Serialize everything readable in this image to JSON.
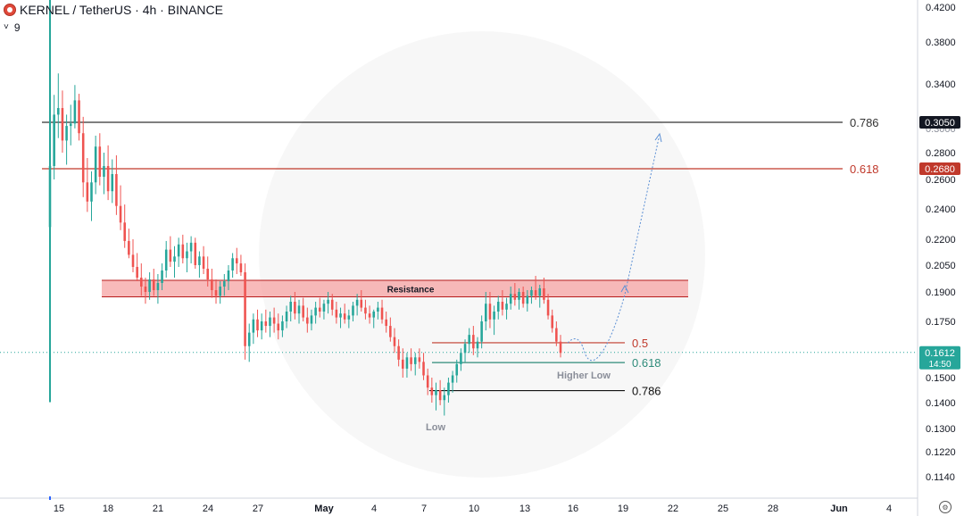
{
  "header": {
    "title": "KERNEL / TetherUS · 4h · BINANCE",
    "indicator_toggle": "˅",
    "indicator_count": "9"
  },
  "colors": {
    "up": "#26a69a",
    "down": "#ef5350",
    "fib_786": "#333333",
    "fib_618": "#c0392b",
    "resistance_fill": "#f5a3a3",
    "resistance_border": "#b71c1c",
    "green_fib": "#2e8b7a",
    "price_badge": "#26a69a"
  },
  "chart_data": {
    "type": "candlestick",
    "symbol": "KERNEL / TetherUS",
    "interval": "4h",
    "exchange": "BINANCE",
    "y_ticks": [
      "0.4200",
      "0.3800",
      "0.3400",
      "0.3050",
      "0.2800",
      "0.2600",
      "0.2400",
      "0.2200",
      "0.2050",
      "0.1900",
      "0.1750",
      "0.1612",
      "0.1500",
      "0.1400",
      "0.1300",
      "0.1220",
      "0.1140"
    ],
    "x_ticks": [
      "15",
      "18",
      "21",
      "24",
      "27",
      "May",
      "4",
      "7",
      "10",
      "13",
      "16",
      "19",
      "22",
      "25",
      "28",
      "Jun",
      "4"
    ],
    "last_price": "0.1612",
    "countdown": "14:50",
    "badges": [
      {
        "label": "0.3050",
        "value": 0.305,
        "color": "#131722"
      },
      {
        "label": "0.2680",
        "value": 0.268,
        "color": "#c0392b"
      }
    ],
    "fib_upper": [
      {
        "label": "0.786",
        "value": 0.305,
        "color": "#333333"
      },
      {
        "label": "0.618",
        "value": 0.268,
        "color": "#c0392b"
      }
    ],
    "fib_lower": [
      {
        "label": "0.5",
        "value": 0.1655,
        "color": "#c0392b"
      },
      {
        "label": "0.618",
        "value": 0.1567,
        "color": "#2e8b7a"
      },
      {
        "label": "0.786",
        "value": 0.1448,
        "color": "#111111"
      }
    ],
    "resistance": {
      "label": "Resistance",
      "top": 0.1965,
      "bottom": 0.1875
    },
    "annotations": {
      "low": "Low",
      "higher_low": "Higher Low"
    },
    "ohlc": [
      [
        0.228,
        0.29,
        0.14,
        0.27
      ],
      [
        0.27,
        0.33,
        0.26,
        0.312
      ],
      [
        0.312,
        0.35,
        0.292,
        0.318
      ],
      [
        0.318,
        0.334,
        0.28,
        0.29
      ],
      [
        0.29,
        0.312,
        0.271,
        0.302
      ],
      [
        0.302,
        0.321,
        0.286,
        0.304
      ],
      [
        0.304,
        0.339,
        0.3,
        0.325
      ],
      [
        0.325,
        0.331,
        0.29,
        0.296
      ],
      [
        0.296,
        0.31,
        0.248,
        0.258
      ],
      [
        0.258,
        0.276,
        0.238,
        0.245
      ],
      [
        0.245,
        0.266,
        0.232,
        0.258
      ],
      [
        0.258,
        0.294,
        0.25,
        0.285
      ],
      [
        0.285,
        0.296,
        0.256,
        0.262
      ],
      [
        0.262,
        0.28,
        0.25,
        0.27
      ],
      [
        0.27,
        0.286,
        0.246,
        0.252
      ],
      [
        0.252,
        0.275,
        0.244,
        0.264
      ],
      [
        0.264,
        0.278,
        0.236,
        0.242
      ],
      [
        0.242,
        0.256,
        0.226,
        0.231
      ],
      [
        0.231,
        0.243,
        0.215,
        0.219
      ],
      [
        0.219,
        0.227,
        0.209,
        0.211
      ],
      [
        0.211,
        0.22,
        0.201,
        0.204
      ],
      [
        0.204,
        0.212,
        0.196,
        0.198
      ],
      [
        0.198,
        0.206,
        0.188,
        0.193
      ],
      [
        0.193,
        0.198,
        0.184,
        0.19
      ],
      [
        0.19,
        0.201,
        0.186,
        0.197
      ],
      [
        0.197,
        0.203,
        0.188,
        0.191
      ],
      [
        0.191,
        0.2,
        0.184,
        0.195
      ],
      [
        0.195,
        0.206,
        0.191,
        0.202
      ],
      [
        0.202,
        0.219,
        0.198,
        0.214
      ],
      [
        0.214,
        0.222,
        0.204,
        0.207
      ],
      [
        0.207,
        0.216,
        0.198,
        0.21
      ],
      [
        0.21,
        0.221,
        0.204,
        0.217
      ],
      [
        0.217,
        0.223,
        0.206,
        0.209
      ],
      [
        0.209,
        0.218,
        0.201,
        0.213
      ],
      [
        0.213,
        0.222,
        0.206,
        0.218
      ],
      [
        0.218,
        0.221,
        0.203,
        0.205
      ],
      [
        0.205,
        0.213,
        0.198,
        0.21
      ],
      [
        0.21,
        0.216,
        0.2,
        0.203
      ],
      [
        0.203,
        0.21,
        0.193,
        0.197
      ],
      [
        0.197,
        0.203,
        0.187,
        0.191
      ],
      [
        0.191,
        0.197,
        0.184,
        0.188
      ],
      [
        0.188,
        0.196,
        0.184,
        0.193
      ],
      [
        0.193,
        0.2,
        0.188,
        0.196
      ],
      [
        0.196,
        0.205,
        0.191,
        0.202
      ],
      [
        0.202,
        0.212,
        0.198,
        0.209
      ],
      [
        0.209,
        0.215,
        0.2,
        0.206
      ],
      [
        0.206,
        0.211,
        0.199,
        0.201
      ],
      [
        0.201,
        0.206,
        0.158,
        0.164
      ],
      [
        0.164,
        0.174,
        0.157,
        0.17
      ],
      [
        0.17,
        0.179,
        0.165,
        0.176
      ],
      [
        0.176,
        0.181,
        0.168,
        0.171
      ],
      [
        0.171,
        0.179,
        0.167,
        0.175
      ],
      [
        0.175,
        0.181,
        0.17,
        0.173
      ],
      [
        0.173,
        0.18,
        0.168,
        0.177
      ],
      [
        0.177,
        0.182,
        0.17,
        0.174
      ],
      [
        0.174,
        0.179,
        0.167,
        0.171
      ],
      [
        0.171,
        0.178,
        0.168,
        0.175
      ],
      [
        0.175,
        0.183,
        0.172,
        0.18
      ],
      [
        0.18,
        0.188,
        0.175,
        0.185
      ],
      [
        0.185,
        0.19,
        0.176,
        0.179
      ],
      [
        0.179,
        0.186,
        0.174,
        0.183
      ],
      [
        0.183,
        0.187,
        0.175,
        0.177
      ],
      [
        0.177,
        0.182,
        0.17,
        0.174
      ],
      [
        0.174,
        0.181,
        0.171,
        0.178
      ],
      [
        0.178,
        0.185,
        0.174,
        0.182
      ],
      [
        0.182,
        0.187,
        0.177,
        0.18
      ],
      [
        0.18,
        0.186,
        0.176,
        0.184
      ],
      [
        0.184,
        0.19,
        0.179,
        0.186
      ],
      [
        0.186,
        0.189,
        0.178,
        0.181
      ],
      [
        0.181,
        0.185,
        0.174,
        0.177
      ],
      [
        0.177,
        0.182,
        0.172,
        0.179
      ],
      [
        0.179,
        0.184,
        0.174,
        0.176
      ],
      [
        0.176,
        0.181,
        0.172,
        0.178
      ],
      [
        0.178,
        0.185,
        0.175,
        0.183
      ],
      [
        0.183,
        0.189,
        0.178,
        0.186
      ],
      [
        0.186,
        0.191,
        0.18,
        0.182
      ],
      [
        0.182,
        0.186,
        0.176,
        0.179
      ],
      [
        0.179,
        0.183,
        0.174,
        0.177
      ],
      [
        0.177,
        0.181,
        0.172,
        0.18
      ],
      [
        0.18,
        0.185,
        0.176,
        0.182
      ],
      [
        0.182,
        0.186,
        0.174,
        0.176
      ],
      [
        0.176,
        0.18,
        0.17,
        0.173
      ],
      [
        0.173,
        0.177,
        0.166,
        0.168
      ],
      [
        0.168,
        0.172,
        0.161,
        0.164
      ],
      [
        0.164,
        0.167,
        0.155,
        0.158
      ],
      [
        0.158,
        0.163,
        0.15,
        0.154
      ],
      [
        0.154,
        0.161,
        0.15,
        0.159
      ],
      [
        0.159,
        0.163,
        0.153,
        0.156
      ],
      [
        0.156,
        0.161,
        0.151,
        0.159
      ],
      [
        0.159,
        0.163,
        0.154,
        0.157
      ],
      [
        0.157,
        0.161,
        0.149,
        0.151
      ],
      [
        0.151,
        0.154,
        0.143,
        0.146
      ],
      [
        0.146,
        0.15,
        0.14,
        0.143
      ],
      [
        0.143,
        0.148,
        0.137,
        0.145
      ],
      [
        0.145,
        0.149,
        0.139,
        0.141
      ],
      [
        0.141,
        0.146,
        0.135,
        0.143
      ],
      [
        0.143,
        0.15,
        0.14,
        0.148
      ],
      [
        0.148,
        0.153,
        0.144,
        0.151
      ],
      [
        0.151,
        0.158,
        0.148,
        0.156
      ],
      [
        0.156,
        0.163,
        0.153,
        0.161
      ],
      [
        0.161,
        0.167,
        0.157,
        0.165
      ],
      [
        0.165,
        0.172,
        0.161,
        0.169
      ],
      [
        0.169,
        0.173,
        0.16,
        0.163
      ],
      [
        0.163,
        0.168,
        0.159,
        0.166
      ],
      [
        0.166,
        0.178,
        0.163,
        0.175
      ],
      [
        0.175,
        0.19,
        0.171,
        0.184
      ],
      [
        0.184,
        0.19,
        0.172,
        0.176
      ],
      [
        0.176,
        0.183,
        0.169,
        0.18
      ],
      [
        0.18,
        0.188,
        0.176,
        0.185
      ],
      [
        0.185,
        0.191,
        0.178,
        0.181
      ],
      [
        0.181,
        0.187,
        0.176,
        0.184
      ],
      [
        0.184,
        0.193,
        0.181,
        0.189
      ],
      [
        0.189,
        0.195,
        0.183,
        0.186
      ],
      [
        0.186,
        0.192,
        0.181,
        0.19
      ],
      [
        0.19,
        0.193,
        0.182,
        0.184
      ],
      [
        0.184,
        0.191,
        0.18,
        0.188
      ],
      [
        0.188,
        0.193,
        0.184,
        0.191
      ],
      [
        0.191,
        0.199,
        0.186,
        0.188
      ],
      [
        0.188,
        0.194,
        0.182,
        0.192
      ],
      [
        0.192,
        0.198,
        0.184,
        0.186
      ],
      [
        0.186,
        0.189,
        0.176,
        0.178
      ],
      [
        0.178,
        0.181,
        0.17,
        0.172
      ],
      [
        0.172,
        0.175,
        0.164,
        0.166
      ],
      [
        0.166,
        0.169,
        0.159,
        0.161
      ]
    ]
  }
}
